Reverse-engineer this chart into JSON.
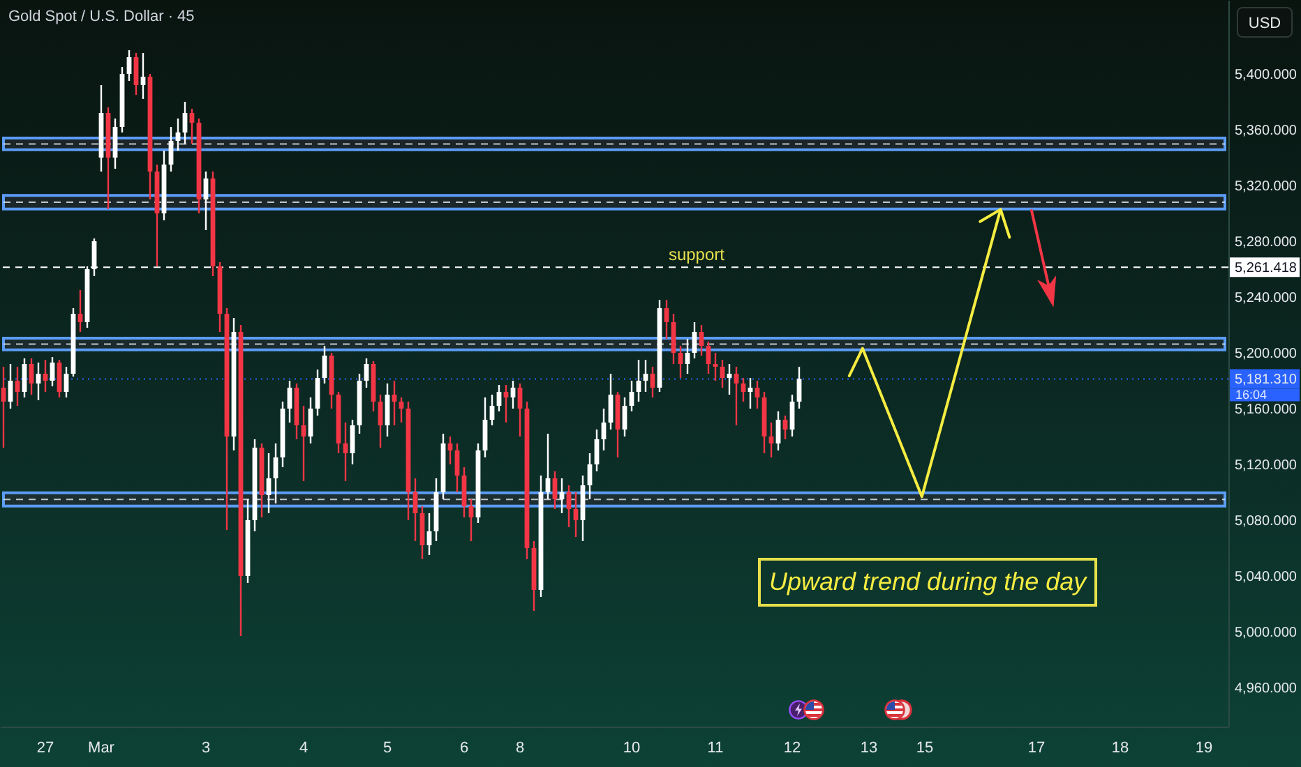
{
  "chart_data": {
    "type": "candlestick",
    "title": "Gold Spot / U.S. Dollar · 45",
    "ylabel": "USD",
    "categories": [
      null,
      null,
      null,
      null,
      null,
      null,
      "27",
      null,
      null,
      null,
      null,
      null,
      null,
      null,
      "Mar",
      null,
      null,
      null,
      null,
      null,
      null,
      null,
      null,
      null,
      null,
      null,
      null,
      null,
      null,
      "3",
      null,
      null,
      null,
      null,
      null,
      null,
      null,
      null,
      null,
      null,
      null,
      null,
      null,
      "4",
      null,
      null,
      null,
      null,
      null,
      null,
      null,
      null,
      null,
      null,
      null,
      "5",
      null,
      null,
      null,
      null,
      null,
      null,
      null,
      null,
      null,
      null,
      "6",
      null,
      null,
      null,
      null,
      null,
      null,
      null,
      "8",
      null,
      null,
      null,
      null,
      null,
      null,
      null,
      null,
      null,
      null,
      null,
      null,
      null,
      null,
      null,
      "10",
      null,
      null,
      null,
      null,
      null,
      null,
      null,
      null,
      null,
      null,
      null,
      "11",
      null,
      null,
      null,
      null,
      null,
      null,
      null,
      null,
      null,
      null,
      "12",
      null,
      null,
      null,
      null,
      null,
      null,
      null,
      null,
      null,
      null,
      "13",
      null,
      null,
      null,
      null,
      null,
      null,
      null,
      "15",
      null,
      null,
      null,
      null,
      null,
      null,
      null,
      null,
      null,
      null,
      null,
      null,
      null,
      null,
      null,
      "17",
      null,
      null,
      null,
      null,
      null,
      null,
      null,
      null,
      null,
      null,
      null,
      "18",
      null,
      null,
      null,
      null,
      null,
      null,
      null,
      null,
      null,
      null,
      null,
      "19",
      null,
      null,
      null
    ],
    "ylim": [
      4932,
      5453
    ],
    "yticks": [
      {
        "value": 4960,
        "label": "4,960.000"
      },
      {
        "value": 5000,
        "label": "5,000.000"
      },
      {
        "value": 5040,
        "label": "5,040.000"
      },
      {
        "value": 5080,
        "label": "5,080.000"
      },
      {
        "value": 5120,
        "label": "5,120.000"
      },
      {
        "value": 5160,
        "label": "5,160.000"
      },
      {
        "value": 5181.31,
        "label": "5,181.310"
      },
      {
        "value": 5200,
        "label": "5,200.000"
      },
      {
        "value": 5240,
        "label": "5,240.000"
      },
      {
        "value": 5261.418,
        "label": "5,261.418"
      },
      {
        "value": 5280,
        "label": "5,280.000"
      },
      {
        "value": 5320,
        "label": "5,320.000"
      },
      {
        "value": 5360,
        "label": "5,360.000"
      },
      {
        "value": 5400,
        "label": "5,400.000"
      }
    ],
    "ohlc": [
      [
        5175,
        5190,
        5132,
        5165
      ],
      [
        5165,
        5192,
        5160,
        5180
      ],
      [
        5180,
        5190,
        5162,
        5172
      ],
      [
        5172,
        5196,
        5168,
        5192
      ],
      [
        5192,
        5196,
        5170,
        5178
      ],
      [
        5178,
        5193,
        5166,
        5185
      ],
      [
        5185,
        5195,
        5172,
        5180
      ],
      [
        5180,
        5197,
        5176,
        5193
      ],
      [
        5193,
        5195,
        5168,
        5172
      ],
      [
        5172,
        5190,
        5168,
        5185
      ],
      [
        5185,
        5232,
        5183,
        5228
      ],
      [
        5228,
        5245,
        5215,
        5222
      ],
      [
        5222,
        5262,
        5218,
        5260
      ],
      [
        5260,
        5282,
        5255,
        5280
      ],
      [
        5340,
        5392,
        5330,
        5372
      ],
      [
        5372,
        5376,
        5303,
        5340
      ],
      [
        5340,
        5368,
        5332,
        5362
      ],
      [
        5362,
        5405,
        5358,
        5400
      ],
      [
        5400,
        5417,
        5395,
        5412
      ],
      [
        5412,
        5415,
        5385,
        5392
      ],
      [
        5392,
        5415,
        5382,
        5398
      ],
      [
        5398,
        5400,
        5310,
        5330
      ],
      [
        5330,
        5335,
        5262,
        5300
      ],
      [
        5300,
        5345,
        5295,
        5335
      ],
      [
        5335,
        5362,
        5330,
        5352
      ],
      [
        5352,
        5368,
        5345,
        5358
      ],
      [
        5358,
        5380,
        5350,
        5372
      ],
      [
        5372,
        5375,
        5350,
        5365
      ],
      [
        5365,
        5368,
        5300,
        5310
      ],
      [
        5310,
        5330,
        5288,
        5325
      ],
      [
        5325,
        5330,
        5255,
        5262
      ],
      [
        5262,
        5265,
        5215,
        5228
      ],
      [
        5228,
        5232,
        5073,
        5140
      ],
      [
        5140,
        5225,
        5130,
        5215
      ],
      [
        5215,
        5220,
        4997,
        5040
      ],
      [
        5040,
        5095,
        5035,
        5080
      ],
      [
        5080,
        5138,
        5072,
        5132
      ],
      [
        5132,
        5135,
        5082,
        5098
      ],
      [
        5098,
        5128,
        5085,
        5110
      ],
      [
        5110,
        5135,
        5092,
        5125
      ],
      [
        5125,
        5165,
        5118,
        5160
      ],
      [
        5160,
        5180,
        5150,
        5175
      ],
      [
        5175,
        5178,
        5138,
        5148
      ],
      [
        5148,
        5162,
        5108,
        5140
      ],
      [
        5140,
        5168,
        5135,
        5160
      ],
      [
        5160,
        5188,
        5155,
        5182
      ],
      [
        5182,
        5205,
        5178,
        5198
      ],
      [
        5198,
        5200,
        5160,
        5170
      ],
      [
        5170,
        5172,
        5128,
        5135
      ],
      [
        5135,
        5150,
        5108,
        5128
      ],
      [
        5128,
        5152,
        5120,
        5148
      ],
      [
        5148,
        5185,
        5142,
        5180
      ],
      [
        5180,
        5196,
        5175,
        5192
      ],
      [
        5192,
        5194,
        5158,
        5165
      ],
      [
        5165,
        5170,
        5132,
        5148
      ],
      [
        5148,
        5178,
        5140,
        5170
      ],
      [
        5170,
        5180,
        5148,
        5165
      ],
      [
        5165,
        5168,
        5150,
        5160
      ],
      [
        5160,
        5165,
        5080,
        5100
      ],
      [
        5100,
        5110,
        5065,
        5085
      ],
      [
        5085,
        5090,
        5052,
        5062
      ],
      [
        5062,
        5085,
        5055,
        5072
      ],
      [
        5072,
        5110,
        5065,
        5100
      ],
      [
        5100,
        5142,
        5095,
        5135
      ],
      [
        5135,
        5140,
        5120,
        5130
      ],
      [
        5130,
        5135,
        5100,
        5112
      ],
      [
        5112,
        5118,
        5082,
        5090
      ],
      [
        5090,
        5095,
        5065,
        5082
      ],
      [
        5082,
        5135,
        5078,
        5130
      ],
      [
        5130,
        5168,
        5125,
        5152
      ],
      [
        5152,
        5170,
        5148,
        5162
      ],
      [
        5162,
        5177,
        5158,
        5172
      ],
      [
        5172,
        5177,
        5150,
        5168
      ],
      [
        5168,
        5180,
        5160,
        5175
      ],
      [
        5175,
        5178,
        5140,
        5160
      ],
      [
        5160,
        5165,
        5052,
        5060
      ],
      [
        5060,
        5065,
        5015,
        5030
      ],
      [
        5030,
        5112,
        5025,
        5100
      ],
      [
        5100,
        5142,
        5095,
        5110
      ],
      [
        5110,
        5115,
        5088,
        5095
      ],
      [
        5095,
        5110,
        5085,
        5100
      ],
      [
        5100,
        5105,
        5075,
        5088
      ],
      [
        5088,
        5100,
        5068,
        5080
      ],
      [
        5080,
        5112,
        5065,
        5105
      ],
      [
        5105,
        5128,
        5095,
        5120
      ],
      [
        5120,
        5145,
        5115,
        5138
      ],
      [
        5138,
        5160,
        5130,
        5150
      ],
      [
        5150,
        5185,
        5145,
        5170
      ],
      [
        5170,
        5172,
        5125,
        5145
      ],
      [
        5145,
        5168,
        5140,
        5162
      ],
      [
        5162,
        5180,
        5158,
        5172
      ],
      [
        5172,
        5195,
        5165,
        5180
      ],
      [
        5180,
        5195,
        5172,
        5185
      ],
      [
        5185,
        5190,
        5168,
        5175
      ],
      [
        5175,
        5238,
        5172,
        5232
      ],
      [
        5232,
        5238,
        5210,
        5222
      ],
      [
        5222,
        5228,
        5192,
        5200
      ],
      [
        5200,
        5205,
        5182,
        5192
      ],
      [
        5192,
        5210,
        5185,
        5200
      ],
      [
        5200,
        5222,
        5196,
        5215
      ],
      [
        5215,
        5220,
        5198,
        5205
      ],
      [
        5205,
        5208,
        5185,
        5192
      ],
      [
        5192,
        5200,
        5180,
        5190
      ],
      [
        5190,
        5195,
        5175,
        5182
      ],
      [
        5182,
        5192,
        5170,
        5185
      ],
      [
        5185,
        5190,
        5148,
        5178
      ],
      [
        5178,
        5182,
        5165,
        5172
      ],
      [
        5172,
        5182,
        5160,
        5175
      ],
      [
        5175,
        5180,
        5160,
        5168
      ],
      [
        5168,
        5172,
        5128,
        5140
      ],
      [
        5140,
        5150,
        5125,
        5135
      ],
      [
        5135,
        5158,
        5130,
        5152
      ],
      [
        5152,
        5155,
        5138,
        5145
      ],
      [
        5145,
        5170,
        5140,
        5165
      ],
      [
        5165,
        5190,
        5160,
        5181.31
      ],
      null,
      null,
      null,
      null,
      null,
      null,
      null,
      null,
      null,
      null,
      null,
      null,
      null,
      null,
      null,
      null,
      null,
      null,
      null,
      null,
      null,
      null,
      null,
      null,
      null,
      null,
      null,
      null,
      null,
      null,
      null,
      null,
      null,
      null,
      null,
      null,
      null,
      null,
      null,
      null,
      null,
      null,
      null,
      null,
      null,
      null,
      null,
      null,
      null,
      null,
      null,
      null,
      null,
      null,
      null,
      null,
      null,
      null,
      null,
      null,
      null
    ],
    "colors": [
      "#f23645",
      "#ffffff",
      "#f23645",
      "#ffffff",
      "#f23645",
      "#ffffff",
      "#f23645",
      "#ffffff",
      "#f23645",
      "#ffffff",
      "#ffffff",
      "#f23645",
      "#ffffff",
      "#ffffff",
      "#ffffff",
      "#f23645",
      "#ffffff",
      "#ffffff",
      "#ffffff",
      "#f23645",
      "#ffffff",
      "#f23645",
      "#f23645",
      "#ffffff",
      "#ffffff",
      "#ffffff",
      "#ffffff",
      "#f23645",
      "#f23645",
      "#ffffff",
      "#f23645",
      "#f23645",
      "#f23645",
      "#ffffff",
      "#f23645",
      "#ffffff",
      "#ffffff",
      "#f23645",
      "#ffffff",
      "#ffffff",
      "#ffffff",
      "#ffffff",
      "#f23645",
      "#f23645",
      "#ffffff",
      "#ffffff",
      "#ffffff",
      "#f23645",
      "#f23645",
      "#f23645",
      "#ffffff",
      "#ffffff",
      "#ffffff",
      "#f23645",
      "#f23645",
      "#ffffff",
      "#f23645",
      "#f23645",
      "#f23645",
      "#f23645",
      "#f23645",
      "#ffffff",
      "#ffffff",
      "#ffffff",
      "#f23645",
      "#f23645",
      "#f23645",
      "#f23645",
      "#ffffff",
      "#ffffff",
      "#ffffff",
      "#ffffff",
      "#f23645",
      "#ffffff",
      "#f23645",
      "#f23645",
      "#f23645",
      "#ffffff",
      "#ffffff",
      "#f23645",
      "#ffffff",
      "#f23645",
      "#f23645",
      "#ffffff",
      "#ffffff",
      "#ffffff",
      "#ffffff",
      "#ffffff",
      "#f23645",
      "#ffffff",
      "#ffffff",
      "#ffffff",
      "#ffffff",
      "#f23645",
      "#ffffff",
      "#f23645",
      "#f23645",
      "#f23645",
      "#ffffff",
      "#ffffff",
      "#f23645",
      "#f23645",
      "#f23645",
      "#f23645",
      "#ffffff",
      "#f23645",
      "#f23645",
      "#ffffff",
      "#f23645",
      "#f23645",
      "#f23645",
      "#ffffff",
      "#f23645",
      "#ffffff",
      "#ffffff",
      null,
      null,
      null,
      null,
      null,
      null,
      null,
      null,
      null,
      null,
      null,
      null,
      null,
      null,
      null,
      null,
      null,
      null,
      null,
      null,
      null,
      null,
      null,
      null,
      null,
      null,
      null,
      null,
      null,
      null,
      null,
      null,
      null,
      null,
      null,
      null,
      null,
      null,
      null,
      null,
      null,
      null,
      null,
      null,
      null,
      null,
      null,
      null,
      null,
      null,
      null,
      null,
      null,
      null,
      null,
      null,
      null,
      null,
      null,
      null,
      null
    ],
    "bands": [
      {
        "axis": "y",
        "from": 5345.6,
        "to": 5354,
        "color": "#5b9cf6"
      },
      {
        "axis": "y",
        "from": 5303.1,
        "to": 5312.9,
        "color": "#5b9cf6"
      },
      {
        "axis": "y",
        "from": 5202.1,
        "to": 5210.5,
        "color": "#5b9cf6"
      },
      {
        "axis": "y",
        "from": 5090.1,
        "to": 5099.6,
        "color": "#5b9cf6"
      }
    ],
    "ref_lines": [
      {
        "axis": "y",
        "value": 5261.418,
        "label": "support",
        "color": "#ffffff",
        "line_style": "dashed"
      },
      {
        "axis": "y",
        "value": 5181.31,
        "color": "#2962ff",
        "line_style": "dotted"
      }
    ],
    "annotations": [
      "Upward trend during the day",
      "16:04"
    ]
  }
}
